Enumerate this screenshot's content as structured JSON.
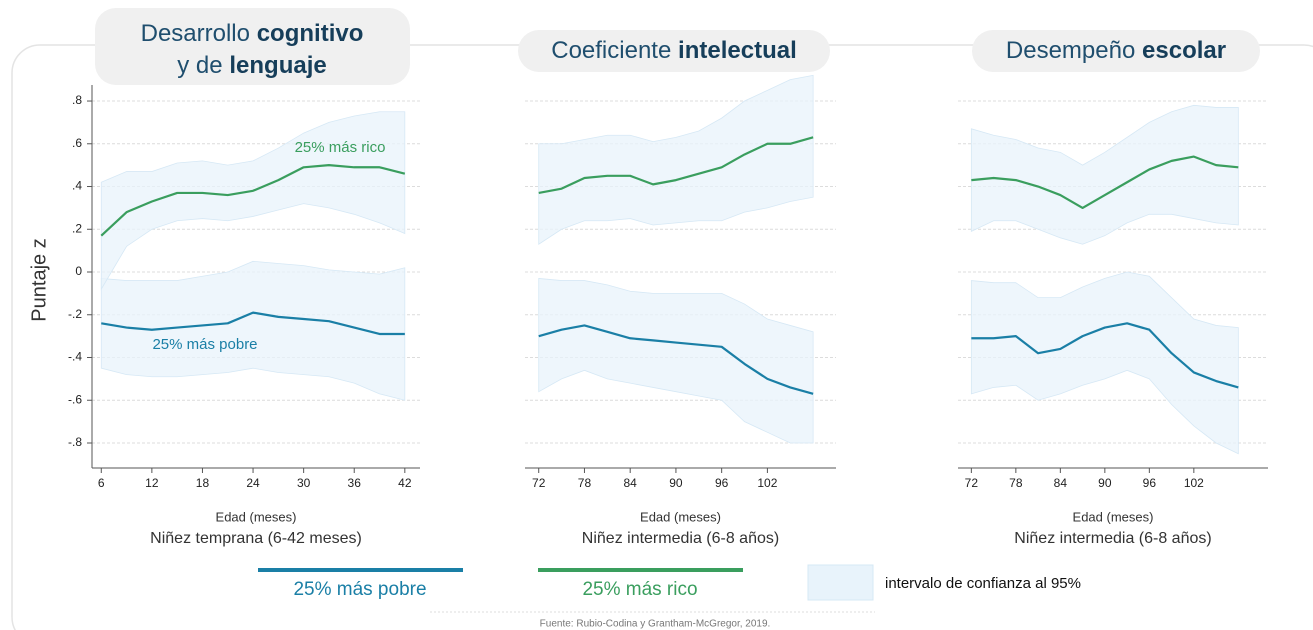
{
  "chart_data": [
    {
      "type": "line",
      "title_lines": [
        [
          {
            "text": "Desarrollo",
            "bold": false
          },
          {
            "text": "cognitivo",
            "bold": true
          }
        ],
        [
          {
            "text": "y de",
            "bold": false
          },
          {
            "text": "lenguaje",
            "bold": true
          }
        ]
      ],
      "ylabel": "Puntaje z",
      "xlabel": "Edad (meses)",
      "subtitle": "Niñez temprana (6-42 meses)",
      "x": [
        6,
        9,
        12,
        15,
        18,
        21,
        24,
        27,
        30,
        33,
        36,
        39,
        42
      ],
      "xlim": [
        4.9,
        43.8
      ],
      "xticks": [
        6,
        12,
        18,
        24,
        30,
        36,
        42
      ],
      "ylim": [
        -0.917,
        0.875
      ],
      "yticks": [
        {
          "value": 0.8,
          "label": ".8"
        },
        {
          "value": 0.6,
          "label": ".6"
        },
        {
          "value": 0.4,
          "label": ".4"
        },
        {
          "value": 0.2,
          "label": ".2"
        },
        0,
        {
          "value": -0.2,
          "label": "-.2"
        },
        {
          "value": -0.4,
          "label": "-.4"
        },
        {
          "value": -0.6,
          "label": "-.6"
        },
        {
          "value": -0.8,
          "label": "-.8"
        }
      ],
      "series": [
        {
          "name": "25% más pobre",
          "color": "#1a7fa6",
          "values": [
            -0.24,
            -0.26,
            -0.27,
            -0.26,
            -0.25,
            -0.24,
            -0.19,
            -0.21,
            -0.22,
            -0.23,
            -0.26,
            -0.29,
            -0.29
          ],
          "lower": [
            -0.45,
            -0.48,
            -0.49,
            -0.49,
            -0.48,
            -0.47,
            -0.45,
            -0.47,
            -0.48,
            -0.49,
            -0.52,
            -0.57,
            -0.6
          ],
          "upper": [
            -0.03,
            -0.04,
            -0.04,
            -0.04,
            -0.02,
            0,
            0.05,
            0.04,
            0.03,
            0.01,
            0,
            -0.01,
            0.02
          ]
        },
        {
          "name": "25% más rico",
          "color": "#3a9e5e",
          "values": [
            0.17,
            0.28,
            0.33,
            0.37,
            0.37,
            0.36,
            0.38,
            0.43,
            0.49,
            0.5,
            0.49,
            0.49,
            0.46
          ],
          "lower": [
            -0.08,
            0.12,
            0.2,
            0.24,
            0.25,
            0.24,
            0.26,
            0.29,
            0.32,
            0.3,
            0.27,
            0.23,
            0.18
          ],
          "upper": [
            0.42,
            0.47,
            0.47,
            0.51,
            0.52,
            0.5,
            0.52,
            0.58,
            0.65,
            0.7,
            0.73,
            0.75,
            0.75
          ]
        }
      ],
      "annotations": [
        "25% más rico",
        "25% más pobre"
      ]
    },
    {
      "type": "line",
      "title_lines": [
        [
          {
            "text": "Coeficiente",
            "bold": false
          },
          {
            "text": "intelectual",
            "bold": true
          }
        ]
      ],
      "xlabel": "Edad (meses)",
      "subtitle": "Niñez intermedia (6-8 años)",
      "x": [
        72,
        75,
        78,
        81,
        84,
        87,
        90,
        93,
        96,
        99,
        102,
        105,
        108
      ],
      "xlim": [
        70.2,
        111
      ],
      "xticks": [
        72,
        78,
        84,
        90,
        96,
        102
      ],
      "ylim": [
        -0.917,
        0.875
      ],
      "yticks": [
        0.8,
        0.6,
        0.4,
        0.2,
        0,
        -0.2,
        -0.4,
        -0.6,
        -0.8
      ],
      "series": [
        {
          "color": "#1a7fa6",
          "values": [
            -0.3,
            -0.27,
            -0.25,
            -0.28,
            -0.31,
            -0.32,
            -0.33,
            -0.34,
            -0.35,
            -0.43,
            -0.5,
            -0.54,
            -0.57
          ],
          "lower": [
            -0.56,
            -0.5,
            -0.46,
            -0.5,
            -0.52,
            -0.54,
            -0.56,
            -0.58,
            -0.6,
            -0.7,
            -0.75,
            -0.8,
            -0.8
          ],
          "upper": [
            -0.03,
            -0.04,
            -0.04,
            -0.06,
            -0.09,
            -0.1,
            -0.1,
            -0.1,
            -0.1,
            -0.15,
            -0.22,
            -0.25,
            -0.28
          ]
        },
        {
          "color": "#3a9e5e",
          "values": [
            0.37,
            0.39,
            0.44,
            0.45,
            0.45,
            0.41,
            0.43,
            0.46,
            0.49,
            0.55,
            0.6,
            0.6,
            0.63
          ],
          "lower": [
            0.13,
            0.2,
            0.24,
            0.24,
            0.25,
            0.22,
            0.23,
            0.24,
            0.24,
            0.28,
            0.3,
            0.33,
            0.35
          ],
          "upper": [
            0.6,
            0.6,
            0.62,
            0.64,
            0.64,
            0.61,
            0.63,
            0.66,
            0.72,
            0.8,
            0.85,
            0.9,
            0.92
          ]
        }
      ]
    },
    {
      "type": "line",
      "title_lines": [
        [
          {
            "text": "Desempeño",
            "bold": false
          },
          {
            "text": "escolar",
            "bold": true
          }
        ]
      ],
      "xlabel": "Edad (meses)",
      "subtitle": "Niñez intermedia (6-8 años)",
      "x": [
        72,
        75,
        78,
        81,
        84,
        87,
        90,
        93,
        96,
        99,
        102,
        105,
        108
      ],
      "xlim": [
        70.2,
        112
      ],
      "xticks": [
        72,
        78,
        84,
        90,
        96,
        102
      ],
      "ylim": [
        -0.917,
        0.875
      ],
      "yticks": [
        0.8,
        0.6,
        0.4,
        0.2,
        0,
        -0.2,
        -0.4,
        -0.6,
        -0.8
      ],
      "series": [
        {
          "color": "#1a7fa6",
          "values": [
            -0.31,
            -0.31,
            -0.3,
            -0.38,
            -0.36,
            -0.3,
            -0.26,
            -0.24,
            -0.27,
            -0.38,
            -0.47,
            -0.51,
            -0.54
          ],
          "lower": [
            -0.57,
            -0.54,
            -0.53,
            -0.6,
            -0.57,
            -0.53,
            -0.5,
            -0.46,
            -0.5,
            -0.62,
            -0.72,
            -0.8,
            -0.85
          ],
          "upper": [
            -0.04,
            -0.05,
            -0.05,
            -0.12,
            -0.12,
            -0.07,
            -0.03,
            0,
            -0.02,
            -0.12,
            -0.22,
            -0.25,
            -0.26
          ]
        },
        {
          "color": "#3a9e5e",
          "values": [
            0.43,
            0.44,
            0.43,
            0.4,
            0.36,
            0.3,
            0.36,
            0.42,
            0.48,
            0.52,
            0.54,
            0.5,
            0.49
          ],
          "lower": [
            0.19,
            0.24,
            0.24,
            0.2,
            0.16,
            0.13,
            0.17,
            0.23,
            0.27,
            0.27,
            0.25,
            0.23,
            0.22
          ],
          "upper": [
            0.67,
            0.64,
            0.62,
            0.58,
            0.56,
            0.5,
            0.56,
            0.63,
            0.7,
            0.75,
            0.78,
            0.77,
            0.77
          ]
        }
      ]
    }
  ],
  "band_color": "#e8f3fb",
  "legend_band": "intervalo de confianza al 95%",
  "source": "Fuente: Rubio-Codina y Grantham-McGregor, 2019."
}
